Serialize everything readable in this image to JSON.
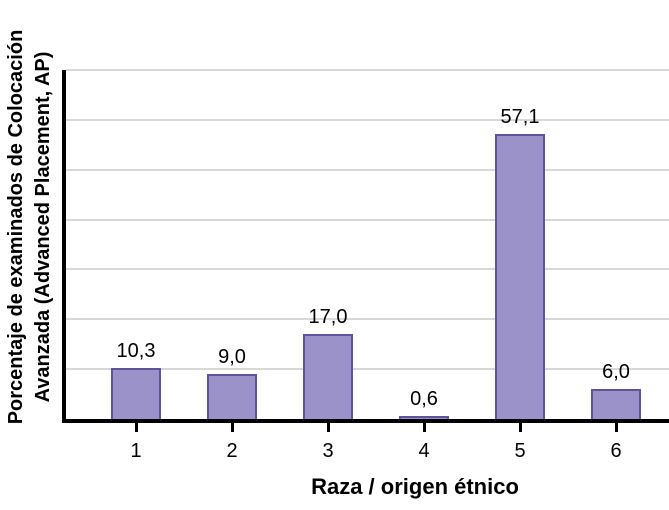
{
  "chart_data": {
    "type": "bar",
    "title": "",
    "categories": [
      "1",
      "2",
      "3",
      "4",
      "5",
      "6"
    ],
    "values": [
      10.3,
      9.0,
      17.0,
      0.6,
      57.1,
      6.0
    ],
    "value_labels": [
      "10,3",
      "9,0",
      "17,0",
      "0,6",
      "57,1",
      "6,0"
    ],
    "xlabel": "Raza / origen étnico",
    "ylabel": "Porcentaje de examinados de Colocación Avanzada (Advanced Placement, AP)",
    "ylabel_lines": [
      "Porcentaje de examinados de Colocación",
      "Avanzada (Advanced Placement, AP)"
    ],
    "ylim": [
      0,
      70
    ],
    "gridline_step": 10,
    "grid": "horizontal-only",
    "y_tick_labels_visible": false,
    "legend": "none",
    "colors": {
      "bar_fill": "#9a92c9",
      "bar_border": "#5f5499",
      "gridline": "#d8d8d8",
      "axis": "#000000",
      "text": "#000000",
      "background": "#ffffff"
    }
  }
}
